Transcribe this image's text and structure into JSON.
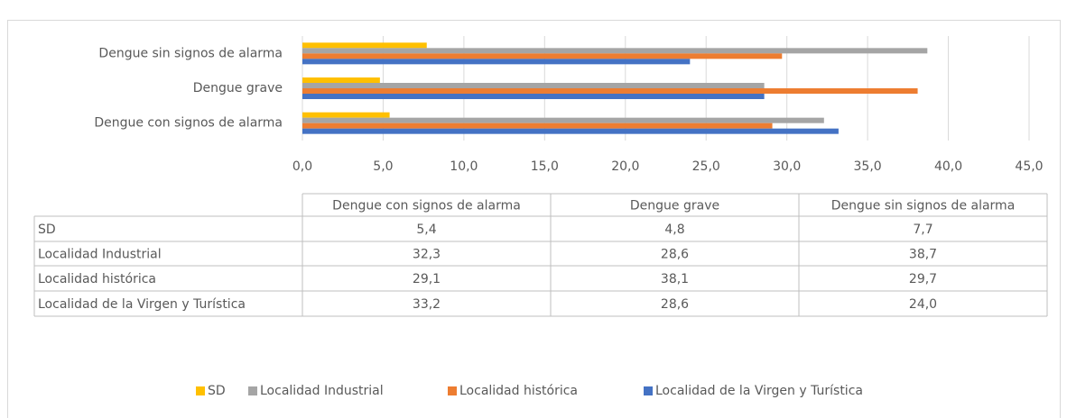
{
  "chart_data": {
    "type": "bar",
    "orientation": "horizontal",
    "categories": [
      "Dengue con signos de alarma",
      "Dengue grave",
      "Dengue sin signos de alarma"
    ],
    "series": [
      {
        "name": "SD",
        "color": "#FFC000",
        "values": [
          5.4,
          4.8,
          7.7
        ],
        "value_labels": [
          "5,4",
          "4,8",
          "7,7"
        ]
      },
      {
        "name": "Localidad Industrial",
        "color": "#A5A5A5",
        "values": [
          32.3,
          28.6,
          38.7
        ],
        "value_labels": [
          "32,3",
          "28,6",
          "38,7"
        ]
      },
      {
        "name": "Localidad histórica",
        "color": "#ED7D31",
        "values": [
          29.1,
          38.1,
          29.7
        ],
        "value_labels": [
          "29,1",
          "38,1",
          "29,7"
        ]
      },
      {
        "name": "Localidad de la Virgen y Turística",
        "color": "#4472C4",
        "values": [
          33.2,
          28.6,
          24.0
        ],
        "value_labels": [
          "33,2",
          "28,6",
          "24,0"
        ]
      }
    ],
    "xlim": [
      0,
      45
    ],
    "xticks": [
      {
        "value": 0,
        "label": "0,0"
      },
      {
        "value": 5,
        "label": "5,0"
      },
      {
        "value": 10,
        "label": "10,0"
      },
      {
        "value": 15,
        "label": "15,0"
      },
      {
        "value": 20,
        "label": "20,0"
      },
      {
        "value": 25,
        "label": "25,0"
      },
      {
        "value": 30,
        "label": "30,0"
      },
      {
        "value": 35,
        "label": "35,0"
      },
      {
        "value": 40,
        "label": "40,0"
      },
      {
        "value": 45,
        "label": "45,0"
      }
    ],
    "grid": true,
    "legend": "bottom"
  }
}
